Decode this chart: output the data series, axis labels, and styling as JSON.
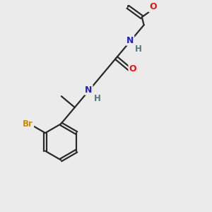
{
  "background_color": "#ebebeb",
  "bond_color": "#2a2a2a",
  "atom_colors": {
    "O": "#ee1111",
    "N": "#2222bb",
    "Br": "#cc8800",
    "H_label": "#557777"
  },
  "figsize": [
    3.0,
    3.0
  ],
  "dpi": 100
}
